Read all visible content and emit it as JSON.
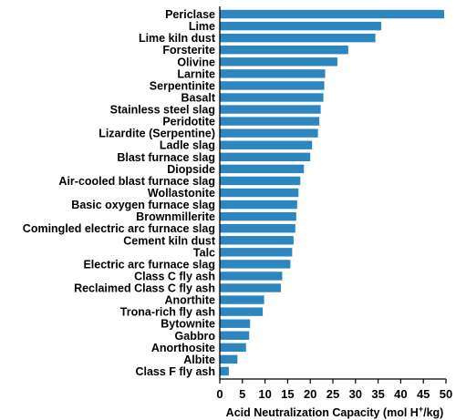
{
  "chart_data": {
    "type": "bar",
    "orientation": "horizontal",
    "bar_color": "#2e86c1",
    "categories": [
      "Periclase",
      "Lime",
      "Lime kiln dust",
      "Forsterite",
      "Olivine",
      "Larnite",
      "Serpentinite",
      "Basalt",
      "Stainless steel slag",
      "Peridotite",
      "Lizardite (Serpentine)",
      "Ladle slag",
      "Blast furnace slag",
      "Diopside",
      "Air-cooled blast furnace slag",
      "Wollastonite",
      "Basic oxygen furnace slag",
      "Brownmillerite",
      "Comingled electric arc furnace slag",
      "Cement kiln dust",
      "Talc",
      "Electric arc furnace slag",
      "Class C fly ash",
      "Reclaimed Class C fly ash",
      "Anorthite",
      "Trona-rich fly ash",
      "Bytownite",
      "Gabbro",
      "Anorthosite",
      "Albite",
      "Class F fly ash"
    ],
    "values": [
      49.6,
      35.7,
      34.4,
      28.4,
      26.0,
      23.3,
      23.1,
      22.9,
      22.3,
      22.0,
      21.7,
      20.4,
      20.0,
      18.6,
      17.8,
      17.4,
      17.1,
      16.9,
      16.7,
      16.3,
      16.0,
      15.6,
      13.8,
      13.5,
      9.8,
      9.5,
      6.7,
      6.5,
      5.8,
      3.9,
      2.0
    ],
    "xlabel_main": "Acid Neutralization Capacity (mol H",
    "xlabel_sup": "+",
    "xlabel_end": "/kg)",
    "xlim": [
      0,
      50
    ],
    "xticks": [
      0,
      5,
      10,
      15,
      20,
      25,
      30,
      35,
      40,
      45,
      50
    ],
    "grid": false,
    "legend": "none"
  }
}
